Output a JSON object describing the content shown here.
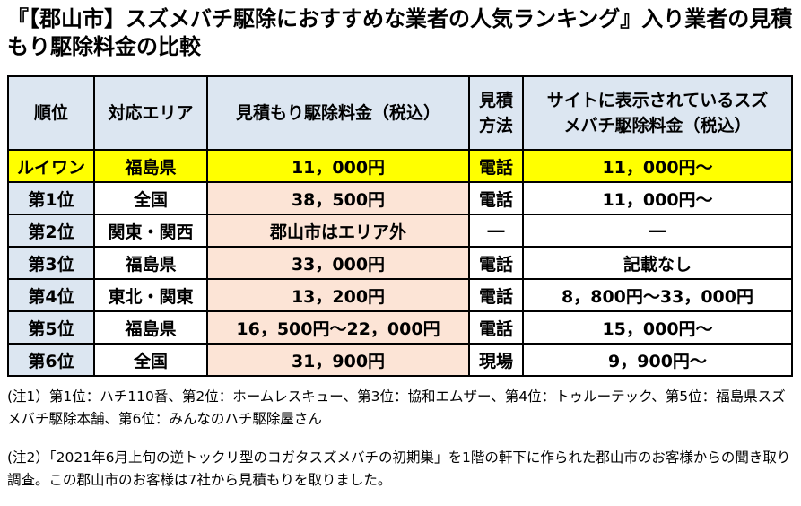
{
  "title": "『【郡山市】スズメバチ駆除におすすめな業者の人気ランキング』入り業者の見積もり駆除料金の比較",
  "table": {
    "headers": {
      "rank": "順位",
      "area": "対応エリア",
      "estimate": "見積もり駆除料金（税込）",
      "method": "見積方法",
      "site_price": "サイトに表示されているスズメバチ駆除料金（税込）"
    },
    "rows": [
      {
        "rank": "ルイワン",
        "area": "福島県",
        "estimate": "11，000円",
        "method": "電話",
        "site_price": "11，000円～"
      },
      {
        "rank": "第1位",
        "area": "全国",
        "estimate": "38，500円",
        "method": "電話",
        "site_price": "11，000円～"
      },
      {
        "rank": "第2位",
        "area": "関東・関西",
        "estimate": "郡山市はエリア外",
        "method": "―",
        "site_price": "―"
      },
      {
        "rank": "第3位",
        "area": "福島県",
        "estimate": "33，000円",
        "method": "電話",
        "site_price": "記載なし"
      },
      {
        "rank": "第4位",
        "area": "東北・関東",
        "estimate": "13，200円",
        "method": "電話",
        "site_price": "8，800円～33，000円"
      },
      {
        "rank": "第5位",
        "area": "福島県",
        "estimate": "16，500円～22，000円",
        "method": "電話",
        "site_price": "15，000円～"
      },
      {
        "rank": "第6位",
        "area": "全国",
        "estimate": "31，900円",
        "method": "現場",
        "site_price": "9，900円～"
      }
    ]
  },
  "notes": {
    "note1": "(注1）第1位：ハチ110番、第2位：ホームレスキュー、第3位：協和エムザー、第4位：トゥルーテック、第5位：福島県スズメバチ駆除本舗、第6位：みんなのハチ駆除屋さん",
    "note2": "(注2）「2021年6月上旬の逆トックリ型のコガタスズメバチの初期巣」を1階の軒下に作られた郡山市のお客様からの聞き取り調査。この郡山市のお客様は7社から見積もりを取りました。"
  },
  "colors": {
    "header_bg": "#dce6f1",
    "price_bg": "#fce4d6",
    "highlight_bg": "#ffff00"
  }
}
